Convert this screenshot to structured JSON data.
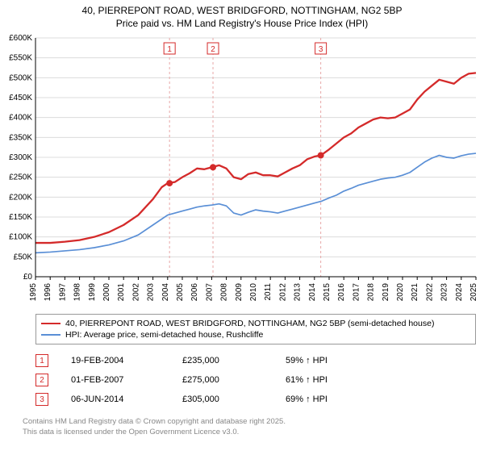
{
  "title_line1": "40, PIERREPONT ROAD, WEST BRIDGFORD, NOTTINGHAM, NG2 5BP",
  "title_line2": "Price paid vs. HM Land Registry's House Price Index (HPI)",
  "chart": {
    "type": "line",
    "background_color": "#ffffff",
    "grid_color": "#dcdcdc",
    "y": {
      "min": 0,
      "max": 600,
      "step": 50,
      "prefix": "£",
      "suffix": "K"
    },
    "x": {
      "min": 1995,
      "max": 2025,
      "step": 1
    },
    "series": [
      {
        "name": "40, PIERREPONT ROAD, WEST BRIDGFORD, NOTTINGHAM, NG2 5BP (semi-detached house)",
        "color": "#d42a2a",
        "width": 2.3,
        "points": [
          [
            1995,
            85
          ],
          [
            1996,
            85
          ],
          [
            1997,
            88
          ],
          [
            1998,
            92
          ],
          [
            1999,
            100
          ],
          [
            2000,
            112
          ],
          [
            2001,
            130
          ],
          [
            2002,
            155
          ],
          [
            2003,
            195
          ],
          [
            2003.6,
            225
          ],
          [
            2004,
            235
          ],
          [
            2004.5,
            238
          ],
          [
            2005,
            250
          ],
          [
            2005.5,
            260
          ],
          [
            2006,
            272
          ],
          [
            2006.5,
            270
          ],
          [
            2007,
            275
          ],
          [
            2007.5,
            280
          ],
          [
            2008,
            272
          ],
          [
            2008.5,
            250
          ],
          [
            2009,
            245
          ],
          [
            2009.5,
            258
          ],
          [
            2010,
            262
          ],
          [
            2010.5,
            255
          ],
          [
            2011,
            255
          ],
          [
            2011.5,
            252
          ],
          [
            2012,
            262
          ],
          [
            2012.5,
            272
          ],
          [
            2013,
            280
          ],
          [
            2013.5,
            295
          ],
          [
            2014,
            302
          ],
          [
            2014.44,
            305
          ],
          [
            2015,
            320
          ],
          [
            2015.5,
            335
          ],
          [
            2016,
            350
          ],
          [
            2016.5,
            360
          ],
          [
            2017,
            375
          ],
          [
            2017.5,
            385
          ],
          [
            2018,
            395
          ],
          [
            2018.5,
            400
          ],
          [
            2019,
            398
          ],
          [
            2019.5,
            400
          ],
          [
            2020,
            410
          ],
          [
            2020.5,
            420
          ],
          [
            2021,
            445
          ],
          [
            2021.5,
            465
          ],
          [
            2022,
            480
          ],
          [
            2022.5,
            495
          ],
          [
            2023,
            490
          ],
          [
            2023.5,
            485
          ],
          [
            2024,
            500
          ],
          [
            2024.5,
            510
          ],
          [
            2025,
            512
          ]
        ]
      },
      {
        "name": "HPI: Average price, semi-detached house, Rushcliffe",
        "color": "#5a8fd6",
        "width": 1.7,
        "points": [
          [
            1995,
            60
          ],
          [
            1996,
            62
          ],
          [
            1997,
            65
          ],
          [
            1998,
            68
          ],
          [
            1999,
            73
          ],
          [
            2000,
            80
          ],
          [
            2001,
            90
          ],
          [
            2002,
            105
          ],
          [
            2003,
            130
          ],
          [
            2004,
            155
          ],
          [
            2004.5,
            160
          ],
          [
            2005,
            165
          ],
          [
            2005.5,
            170
          ],
          [
            2006,
            175
          ],
          [
            2006.5,
            178
          ],
          [
            2007,
            180
          ],
          [
            2007.5,
            183
          ],
          [
            2008,
            178
          ],
          [
            2008.5,
            160
          ],
          [
            2009,
            155
          ],
          [
            2009.5,
            162
          ],
          [
            2010,
            168
          ],
          [
            2010.5,
            165
          ],
          [
            2011,
            163
          ],
          [
            2011.5,
            160
          ],
          [
            2012,
            165
          ],
          [
            2012.5,
            170
          ],
          [
            2013,
            175
          ],
          [
            2013.5,
            180
          ],
          [
            2014,
            185
          ],
          [
            2014.5,
            190
          ],
          [
            2015,
            198
          ],
          [
            2015.5,
            205
          ],
          [
            2016,
            215
          ],
          [
            2016.5,
            222
          ],
          [
            2017,
            230
          ],
          [
            2017.5,
            235
          ],
          [
            2018,
            240
          ],
          [
            2018.5,
            245
          ],
          [
            2019,
            248
          ],
          [
            2019.5,
            250
          ],
          [
            2020,
            255
          ],
          [
            2020.5,
            262
          ],
          [
            2021,
            275
          ],
          [
            2021.5,
            288
          ],
          [
            2022,
            298
          ],
          [
            2022.5,
            305
          ],
          [
            2023,
            300
          ],
          [
            2023.5,
            298
          ],
          [
            2024,
            304
          ],
          [
            2024.5,
            308
          ],
          [
            2025,
            310
          ]
        ]
      }
    ],
    "event_lines": [
      {
        "x": 2004.13,
        "label": "1"
      },
      {
        "x": 2007.09,
        "label": "2"
      },
      {
        "x": 2014.43,
        "label": "3"
      }
    ],
    "event_dot_color": "#d42a2a",
    "event_line_color": "#e8a7a7"
  },
  "legend": {
    "series1_label": "40, PIERREPONT ROAD, WEST BRIDGFORD, NOTTINGHAM, NG2 5BP (semi-detached house)",
    "series2_label": "HPI: Average price, semi-detached house, Rushcliffe",
    "series1_color": "#d42a2a",
    "series2_color": "#5a8fd6"
  },
  "events": [
    {
      "n": "1",
      "date": "19-FEB-2004",
      "price": "£235,000",
      "hpi": "59% ↑ HPI"
    },
    {
      "n": "2",
      "date": "01-FEB-2007",
      "price": "£275,000",
      "hpi": "61% ↑ HPI"
    },
    {
      "n": "3",
      "date": "06-JUN-2014",
      "price": "£305,000",
      "hpi": "69% ↑ HPI"
    }
  ],
  "footer_line1": "Contains HM Land Registry data © Crown copyright and database right 2025.",
  "footer_line2": "This data is licensed under the Open Government Licence v3.0."
}
